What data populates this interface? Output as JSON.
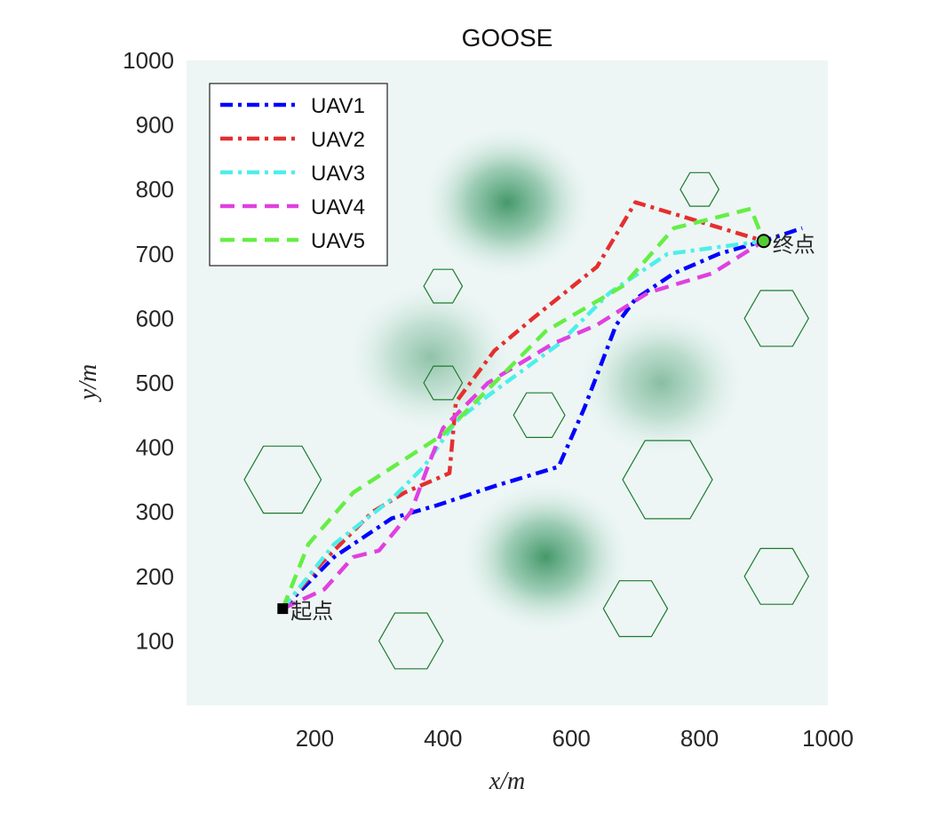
{
  "chart_data": {
    "type": "line",
    "title": "GOOSE",
    "xlabel": "x/m",
    "ylabel": "y/m",
    "xlim": [
      0,
      1000
    ],
    "ylim": [
      0,
      1000
    ],
    "xticks": [
      200,
      400,
      600,
      800,
      1000
    ],
    "yticks": [
      100,
      200,
      300,
      400,
      500,
      600,
      700,
      800,
      900,
      1000
    ],
    "grid": false,
    "legend_position": "top-left",
    "background": "terrain-heatmap",
    "terrain_color": "#2e8b57",
    "terrain_peaks": [
      {
        "x": 500,
        "y": 780,
        "h": 1.0
      },
      {
        "x": 560,
        "y": 230,
        "h": 1.0
      },
      {
        "x": 380,
        "y": 540,
        "h": 0.55
      },
      {
        "x": 740,
        "y": 500,
        "h": 0.6
      }
    ],
    "start": {
      "x": 150,
      "y": 150,
      "label": "起点"
    },
    "end": {
      "x": 900,
      "y": 720,
      "label": "终点"
    },
    "obstacles": [
      {
        "cx": 150,
        "cy": 350,
        "r": 60
      },
      {
        "cx": 350,
        "cy": 100,
        "r": 50
      },
      {
        "cx": 400,
        "cy": 650,
        "r": 30
      },
      {
        "cx": 400,
        "cy": 500,
        "r": 30
      },
      {
        "cx": 550,
        "cy": 450,
        "r": 40
      },
      {
        "cx": 700,
        "cy": 150,
        "r": 50
      },
      {
        "cx": 750,
        "cy": 350,
        "r": 70
      },
      {
        "cx": 800,
        "cy": 800,
        "r": 30
      },
      {
        "cx": 920,
        "cy": 600,
        "r": 50
      },
      {
        "cx": 920,
        "cy": 200,
        "r": 50
      }
    ],
    "series": [
      {
        "name": "UAV1",
        "color": "#0000ff",
        "dash": "dashdot",
        "x": [
          150,
          230,
          320,
          390,
          480,
          580,
          620,
          670,
          700,
          760,
          830,
          900,
          960
        ],
        "y": [
          150,
          230,
          290,
          310,
          340,
          370,
          460,
          590,
          630,
          670,
          700,
          720,
          740
        ]
      },
      {
        "name": "UAV2",
        "color": "#e62e2e",
        "dash": "dashdot",
        "x": [
          150,
          210,
          290,
          340,
          410,
          420,
          480,
          540,
          640,
          700,
          800,
          900
        ],
        "y": [
          150,
          220,
          300,
          330,
          360,
          470,
          550,
          600,
          680,
          780,
          750,
          720
        ]
      },
      {
        "name": "UAV3",
        "color": "#4deeea",
        "dash": "dashdot",
        "x": [
          150,
          230,
          320,
          370,
          420,
          470,
          580,
          660,
          750,
          900
        ],
        "y": [
          150,
          250,
          320,
          370,
          440,
          480,
          560,
          640,
          700,
          720
        ]
      },
      {
        "name": "UAV4",
        "color": "#e040e0",
        "dash": "dash",
        "x": [
          150,
          215,
          260,
          300,
          350,
          380,
          400,
          470,
          570,
          640,
          720,
          820,
          900
        ],
        "y": [
          150,
          180,
          230,
          240,
          300,
          380,
          430,
          500,
          560,
          590,
          640,
          670,
          720
        ]
      },
      {
        "name": "UAV5",
        "color": "#66ee44",
        "dash": "dash",
        "x": [
          150,
          190,
          260,
          400,
          480,
          560,
          680,
          760,
          880,
          900
        ],
        "y": [
          150,
          250,
          330,
          420,
          500,
          580,
          650,
          740,
          770,
          720
        ]
      }
    ]
  }
}
